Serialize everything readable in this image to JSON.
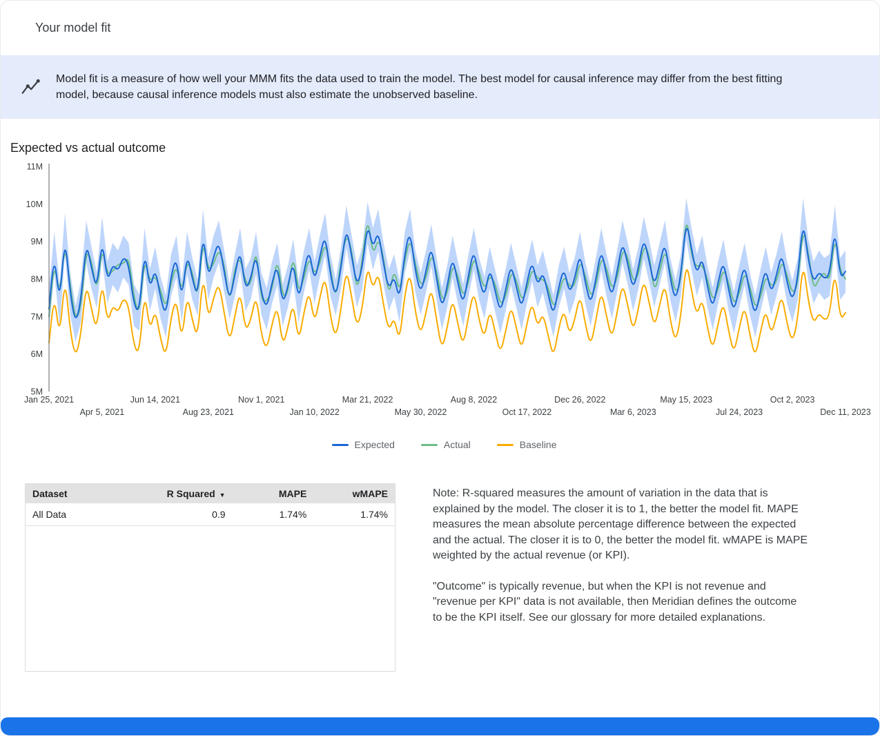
{
  "header": {
    "title": "Your model fit"
  },
  "banner": {
    "icon": "model-fit-trend-icon",
    "text": "Model fit is a measure of how well your MMM fits the data used to train the model. The best model for causal inference may differ from the best fitting model, because causal inference models must also estimate the unobserved baseline."
  },
  "section": {
    "title": "Expected vs actual outcome"
  },
  "chart_data": {
    "type": "line",
    "title": "Expected vs actual outcome",
    "xlabel": "",
    "ylabel": "",
    "unit": "M",
    "ylim": [
      5,
      11
    ],
    "grid": false,
    "legend_position": "bottom",
    "y_tick_values": [
      5,
      6,
      7,
      8,
      9,
      10,
      11
    ],
    "y_tick_labels": [
      "5M",
      "6M",
      "7M",
      "8M",
      "9M",
      "10M",
      "11M"
    ],
    "x_ticks": [
      {
        "label": "Jan 25, 2021",
        "index": 0
      },
      {
        "label": "Apr 5, 2021",
        "index": 10
      },
      {
        "label": "Jun 14, 2021",
        "index": 20
      },
      {
        "label": "Aug 23, 2021",
        "index": 30
      },
      {
        "label": "Nov 1, 2021",
        "index": 40
      },
      {
        "label": "Jan 10, 2022",
        "index": 50
      },
      {
        "label": "Mar 21, 2022",
        "index": 60
      },
      {
        "label": "May 30, 2022",
        "index": 70
      },
      {
        "label": "Aug 8, 2022",
        "index": 80
      },
      {
        "label": "Oct 17, 2022",
        "index": 90
      },
      {
        "label": "Dec 26, 2022",
        "index": 100
      },
      {
        "label": "Mar 6, 2023",
        "index": 110
      },
      {
        "label": "May 15, 2023",
        "index": 120
      },
      {
        "label": "Jul 24, 2023",
        "index": 130
      },
      {
        "label": "Oct 2, 2023",
        "index": 140
      },
      {
        "label": "Dec 11, 2023",
        "index": 150
      }
    ],
    "band": {
      "around_series": "Expected",
      "color": "#aecbfa",
      "opacity": 0.8,
      "approx_halfwidth_m": 0.5
    },
    "series": [
      {
        "name": "Expected",
        "color": "#1967d2",
        "values": [
          7.2,
          8.7,
          7.3,
          9.2,
          7.6,
          6.8,
          7.4,
          9.0,
          8.3,
          7.7,
          9.1,
          7.9,
          8.4,
          8.2,
          8.6,
          8.4,
          7.3,
          7.1,
          8.8,
          7.7,
          8.3,
          7.5,
          7.0,
          8.1,
          8.6,
          7.4,
          8.7,
          8.0,
          7.5,
          9.3,
          8.0,
          8.6,
          9.0,
          8.2,
          7.4,
          8.1,
          8.8,
          7.7,
          8.0,
          8.7,
          7.6,
          7.2,
          7.9,
          8.4,
          7.3,
          7.8,
          8.5,
          7.4,
          8.2,
          8.8,
          7.9,
          8.6,
          9.2,
          8.1,
          7.5,
          8.3,
          9.4,
          8.6,
          7.8,
          8.3,
          9.5,
          8.8,
          9.3,
          8.4,
          7.7,
          8.1,
          7.4,
          8.7,
          9.3,
          8.2,
          7.6,
          8.2,
          8.9,
          8.0,
          7.2,
          7.8,
          8.6,
          7.9,
          7.3,
          8.1,
          8.8,
          8.0,
          7.5,
          8.3,
          7.7,
          7.1,
          7.7,
          8.4,
          7.8,
          7.2,
          7.9,
          8.5,
          7.8,
          8.2,
          7.6,
          7.0,
          7.8,
          8.3,
          7.6,
          8.0,
          8.7,
          7.9,
          7.3,
          8.0,
          8.8,
          8.1,
          7.5,
          8.2,
          9.0,
          8.4,
          7.7,
          8.3,
          9.1,
          8.5,
          7.8,
          8.4,
          9.0,
          8.0,
          7.4,
          8.1,
          9.6,
          8.8,
          8.1,
          8.6,
          7.8,
          7.2,
          7.9,
          8.5,
          7.7,
          7.1,
          7.8,
          8.4,
          7.6,
          7.0,
          7.7,
          8.3,
          7.6,
          8.1,
          8.7,
          7.9,
          7.4,
          8.0,
          9.6,
          8.5,
          7.9,
          8.2,
          8.0,
          8.1,
          9.4,
          8.0,
          8.2
        ]
      },
      {
        "name": "Actual",
        "color": "#6dbd87",
        "values": [
          7.0,
          8.5,
          7.5,
          9.0,
          7.8,
          6.9,
          7.2,
          8.8,
          8.5,
          7.6,
          8.9,
          8.1,
          8.2,
          8.4,
          8.4,
          8.6,
          7.5,
          7.0,
          8.6,
          7.9,
          8.1,
          7.7,
          7.2,
          7.9,
          8.4,
          7.6,
          8.5,
          8.2,
          7.4,
          9.1,
          8.2,
          8.4,
          8.8,
          8.4,
          7.3,
          8.3,
          8.6,
          7.9,
          7.8,
          8.9,
          7.4,
          7.4,
          7.7,
          8.6,
          7.5,
          7.6,
          8.7,
          7.6,
          8.0,
          8.6,
          8.1,
          8.4,
          9.0,
          8.3,
          7.4,
          8.5,
          9.2,
          8.8,
          7.6,
          8.5,
          9.7,
          8.6,
          9.1,
          8.6,
          7.5,
          8.3,
          7.6,
          8.5,
          9.1,
          8.4,
          7.8,
          8.0,
          8.7,
          8.2,
          7.4,
          7.6,
          8.4,
          8.1,
          7.5,
          7.9,
          8.6,
          8.2,
          7.7,
          8.1,
          7.9,
          7.3,
          7.5,
          8.2,
          8.0,
          7.4,
          7.7,
          8.3,
          8.0,
          8.0,
          7.8,
          7.2,
          7.6,
          8.1,
          7.8,
          7.8,
          8.5,
          8.1,
          7.5,
          7.8,
          8.6,
          8.3,
          7.7,
          8.0,
          8.8,
          8.6,
          7.9,
          8.1,
          8.9,
          8.7,
          7.6,
          8.2,
          8.8,
          8.2,
          7.6,
          7.9,
          9.8,
          8.6,
          8.3,
          8.4,
          8.0,
          7.4,
          7.7,
          8.3,
          7.9,
          7.3,
          7.6,
          8.2,
          7.8,
          7.2,
          7.5,
          8.1,
          7.8,
          7.9,
          8.5,
          8.1,
          7.6,
          7.8,
          9.4,
          8.7,
          7.7,
          8.0,
          8.2,
          7.9,
          9.2,
          8.2,
          8.0
        ]
      },
      {
        "name": "Baseline",
        "color": "#f9ab00",
        "values": [
          6.3,
          7.6,
          6.4,
          8.1,
          6.6,
          5.9,
          6.5,
          7.9,
          7.2,
          6.6,
          8.0,
          6.8,
          7.3,
          7.1,
          7.5,
          7.3,
          6.2,
          6.0,
          7.7,
          6.6,
          7.2,
          6.4,
          5.9,
          7.0,
          7.5,
          6.3,
          7.6,
          6.9,
          6.4,
          8.2,
          6.9,
          7.5,
          7.9,
          7.1,
          6.3,
          7.0,
          7.7,
          6.6,
          6.9,
          7.6,
          6.5,
          6.1,
          6.8,
          7.3,
          6.2,
          6.7,
          7.4,
          6.3,
          7.1,
          7.7,
          6.8,
          7.5,
          8.1,
          7.0,
          6.4,
          7.2,
          8.3,
          7.5,
          6.7,
          7.2,
          8.4,
          7.7,
          8.2,
          7.3,
          6.6,
          7.0,
          6.3,
          7.6,
          8.2,
          7.1,
          6.5,
          7.1,
          7.8,
          6.9,
          6.1,
          6.7,
          7.5,
          6.8,
          6.2,
          7.0,
          7.7,
          6.9,
          6.4,
          7.2,
          6.6,
          6.0,
          6.6,
          7.3,
          6.7,
          6.1,
          6.8,
          7.4,
          6.7,
          7.1,
          6.5,
          5.9,
          6.7,
          7.2,
          6.5,
          6.9,
          7.6,
          6.8,
          6.2,
          6.9,
          7.7,
          7.0,
          6.4,
          7.1,
          7.9,
          7.3,
          6.6,
          7.2,
          8.0,
          7.4,
          6.7,
          7.3,
          7.9,
          6.9,
          6.3,
          7.0,
          8.5,
          7.7,
          7.0,
          7.5,
          6.7,
          6.1,
          6.8,
          7.4,
          6.6,
          6.0,
          6.7,
          7.3,
          6.5,
          5.9,
          6.6,
          7.2,
          6.5,
          7.0,
          7.6,
          6.8,
          6.3,
          6.9,
          8.5,
          7.4,
          6.8,
          7.1,
          6.9,
          7.0,
          8.3,
          6.9,
          7.1
        ]
      }
    ]
  },
  "table": {
    "headers": [
      "Dataset",
      "R Squared",
      "MAPE",
      "wMAPE"
    ],
    "sort_column": "R Squared",
    "sort_direction": "descending",
    "rows": [
      [
        "All Data",
        "0.9",
        "1.74%",
        "1.74%"
      ]
    ]
  },
  "note": {
    "paragraph1": "Note: R-squared measures the amount of variation in the data that is explained by the model. The closer it is to 1, the better the model fit. MAPE measures the mean absolute percentage difference between the expected and the actual. The closer it is to 0, the better the model fit. wMAPE is MAPE weighted by the actual revenue (or KPI).",
    "paragraph2": "\"Outcome\" is typically revenue, but when the KPI is not revenue and \"revenue per KPI\" data is not available, then Meridian defines the outcome to be the KPI itself. See our glossary for more detailed explanations."
  },
  "colors": {
    "banner_bg": "#e4ebfb",
    "accent_blue": "#1a73e8",
    "table_header_bg": "#e2e2e2",
    "expected": "#1967d2",
    "actual": "#6dbd87",
    "baseline": "#f9ab00",
    "band": "#aecbfa"
  }
}
